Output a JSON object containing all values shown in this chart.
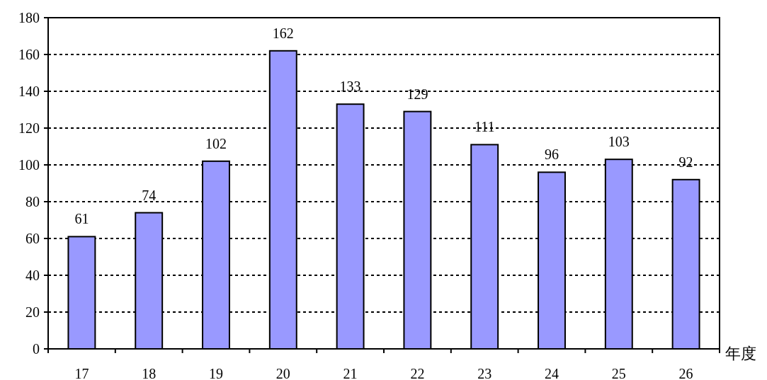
{
  "chart_data": {
    "type": "bar",
    "xlabel": "年度",
    "categories": [
      "17",
      "18",
      "19",
      "20",
      "21",
      "22",
      "23",
      "24",
      "25",
      "26"
    ],
    "values": [
      61,
      74,
      102,
      162,
      133,
      129,
      111,
      96,
      103,
      92
    ],
    "color": "#9999ff",
    "ylim": [
      0,
      180
    ],
    "yticks": [
      0,
      20,
      40,
      60,
      80,
      100,
      120,
      140,
      160,
      180
    ],
    "grid": "y",
    "data_labels": true
  }
}
